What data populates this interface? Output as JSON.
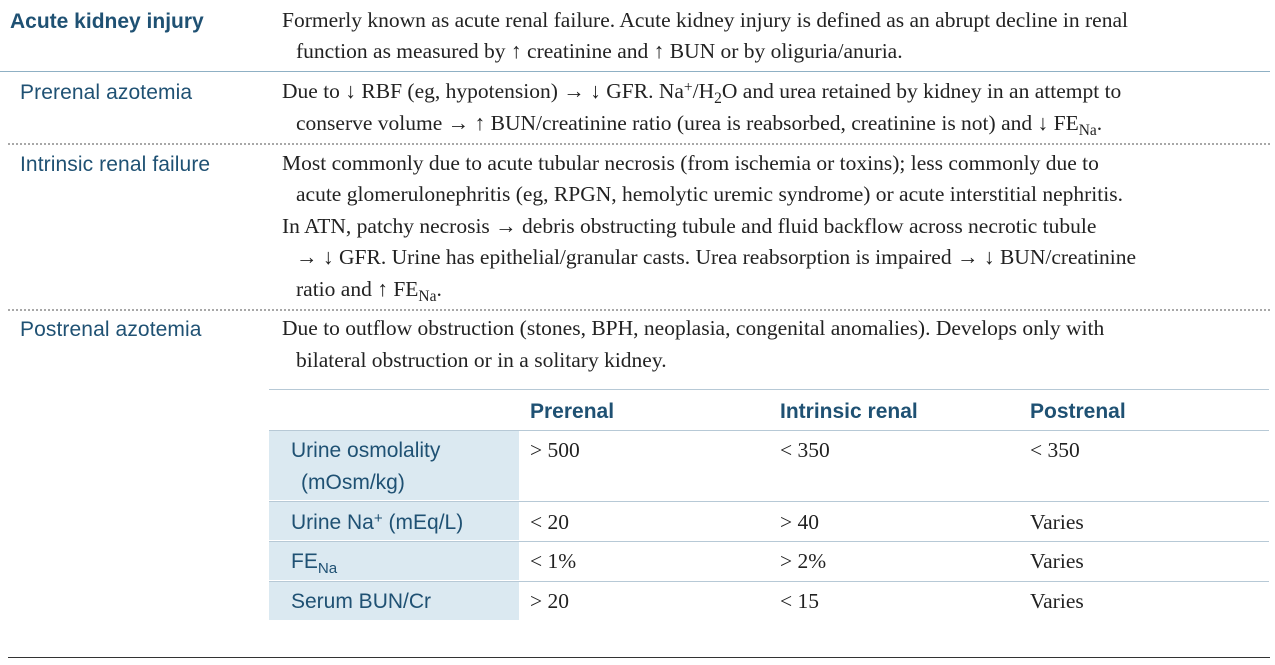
{
  "sections": [
    {
      "term": "Acute kidney injury",
      "lines": [
        "Formerly known as acute renal failure. Acute kidney injury is defined as an abrupt decline in renal",
        "function as measured by ↑ creatinine and ↑ BUN or by oliguria/anuria."
      ]
    },
    {
      "term": "Prerenal azotemia",
      "lines": [
        "Due to ↓ RBF (eg, hypotension) → ↓ GFR. Na+/H2O and urea retained by kidney in an attempt to",
        "conserve volume → ↑ BUN/creatinine ratio (urea is reabsorbed, creatinine is not) and ↓ FENa."
      ]
    },
    {
      "term": "Intrinsic renal failure",
      "lines": [
        "Most commonly due to acute tubular necrosis (from ischemia or toxins); less commonly due to",
        "acute glomerulonephritis (eg, RPGN, hemolytic uremic syndrome) or acute interstitial nephritis.",
        "In ATN, patchy necrosis → debris obstructing tubule and fluid backflow across necrotic tubule",
        "→ ↓ GFR. Urine has epithelial/granular casts. Urea reabsorption is impaired → ↓ BUN/creatinine",
        "ratio and ↑ FENa."
      ]
    },
    {
      "term": "Postrenal azotemia",
      "lines": [
        "Due to outflow obstruction (stones, BPH, neoplasia, congenital anomalies). Develops only with",
        "bilateral obstruction or in a solitary kidney."
      ]
    }
  ],
  "table": {
    "columns": [
      "Prerenal",
      "Intrinsic renal",
      "Postrenal"
    ],
    "rows": [
      {
        "label": "Urine osmolality",
        "label2": "(mOsm/kg)",
        "values": [
          "> 500",
          "< 350",
          "< 350"
        ]
      },
      {
        "label": "Urine Na+ (mEq/L)",
        "values": [
          "< 20",
          "> 40",
          "Varies"
        ]
      },
      {
        "label": "FENa",
        "values": [
          "< 1%",
          "> 2%",
          "Varies"
        ]
      },
      {
        "label": "Serum BUN/Cr",
        "values": [
          "> 20",
          "< 15",
          "Varies"
        ]
      }
    ]
  }
}
